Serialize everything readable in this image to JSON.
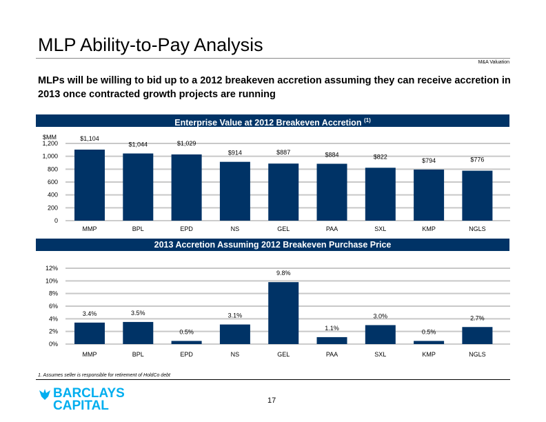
{
  "header": {
    "title": "MLP Ability-to-Pay Analysis",
    "section": "M&A Valuation",
    "headline": "MLPs will be willing to bid up to a 2012 breakeven accretion assuming they can receive accretion in 2013 once contracted growth projects are running"
  },
  "chart_data": [
    {
      "type": "bar",
      "title": "Enterprise Value at 2012 Breakeven Accretion",
      "title_footnote": "(1)",
      "ylabel": "$MM",
      "categories": [
        "MMP",
        "BPL",
        "EPD",
        "NS",
        "GEL",
        "PAA",
        "SXL",
        "KMP",
        "NGLS"
      ],
      "values": [
        1104,
        1044,
        1029,
        914,
        887,
        884,
        822,
        794,
        776
      ],
      "data_labels": [
        "$1,104",
        "$1,044",
        "$1,029",
        "$914",
        "$887",
        "$884",
        "$822",
        "$794",
        "$776"
      ],
      "ylim": [
        0,
        1200
      ],
      "yticks": [
        "0",
        "200",
        "400",
        "600",
        "800",
        "1,000",
        "1,200"
      ],
      "grid": true,
      "color": "#003366"
    },
    {
      "type": "bar",
      "title": "2013 Accretion Assuming 2012 Breakeven Purchase Price",
      "categories": [
        "MMP",
        "BPL",
        "EPD",
        "NS",
        "GEL",
        "PAA",
        "SXL",
        "KMP",
        "NGLS"
      ],
      "values": [
        3.4,
        3.5,
        0.5,
        3.1,
        9.8,
        1.1,
        3.0,
        0.5,
        2.7
      ],
      "data_labels": [
        "3.4%",
        "3.5%",
        "0.5%",
        "3.1%",
        "9.8%",
        "1.1%",
        "3.0%",
        "0.5%",
        "2.7%"
      ],
      "ylim": [
        0,
        12
      ],
      "yticks": [
        "0%",
        "2%",
        "4%",
        "6%",
        "8%",
        "10%",
        "12%"
      ],
      "grid": true,
      "color": "#003366"
    }
  ],
  "footnote": "1.  Assumes seller is responsible for retirement of HoldCo debt",
  "logo": {
    "line1": "BARCLAYS",
    "line2": "CAPITAL"
  },
  "page_number": "17"
}
